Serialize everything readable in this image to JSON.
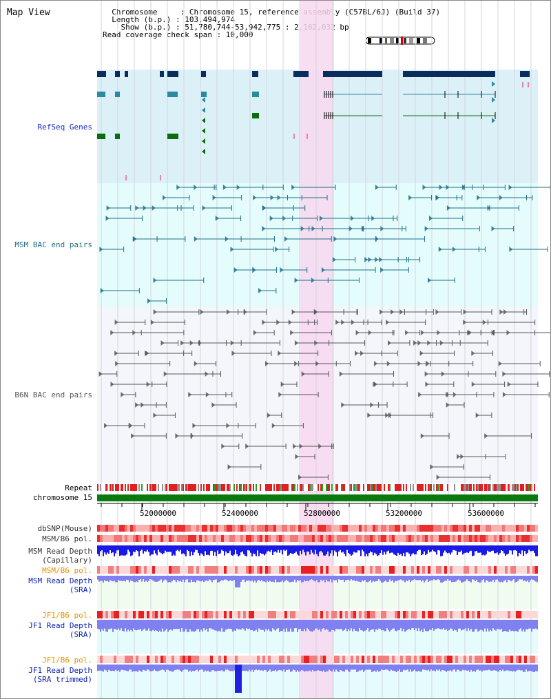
{
  "header": {
    "title": "Map View",
    "info_lines": [
      "  Chromosome     : Chromosome 15, reference assembly (C57BL/6J) (Build 37)",
      "  Length (b.p.) : 103,494,974",
      "    Show (b.p.) : 51,780,744-53,942,775 : 2,162,032 bp",
      "Read coverage check span : 10,000"
    ]
  },
  "tracks": {
    "refseq": "RefSeq Genes",
    "msm_bac": "MSM BAC end pairs",
    "b6n_bac": "B6N BAC end pairs",
    "repeat": "Repeat",
    "chromosome": "chromosome 15",
    "dbsnp": "dbSNP(Mouse)",
    "msm_b6_pol_1": "MSM/B6 pol.",
    "msm_depth_cap_1": "MSM Read Depth",
    "msm_depth_cap_2": "(Capillary)",
    "msm_b6_pol_2": "MSM/B6 pol.",
    "msm_depth_sra_1": "MSM Read Depth",
    "msm_depth_sra_2": "(SRA)",
    "jf1_b6_pol_1": "JF1/B6 pol.",
    "jf1_depth_sra_1": "JF1 Read Depth",
    "jf1_depth_sra_2": "(SRA)",
    "jf1_b6_pol_2": "JF1/B6 pol.",
    "jf1_depth_trim_1": "JF1 Read Depth",
    "jf1_depth_trim_2": "(SRA trimmed)"
  },
  "axis": {
    "ticks": [
      "52000000",
      "52400000",
      "52800000",
      "53200000",
      "53600000"
    ]
  },
  "colors": {
    "highlight": "#f8d8f0",
    "refseq_bg": "#dcf0f8",
    "msm_bac_bg": "#e4fcfc",
    "b6n_bac_bg": "#f4f6fc",
    "gene_dark": "#0a2d5c",
    "gene_teal": "#2a8aa0",
    "gene_green": "#0a6e10",
    "msm_line": "#1e6e86",
    "b6n_line": "#555555",
    "chrom_green": "#0a7a10",
    "depth_blue": "#1a1ae6",
    "depth_light": "#8080f0"
  }
}
